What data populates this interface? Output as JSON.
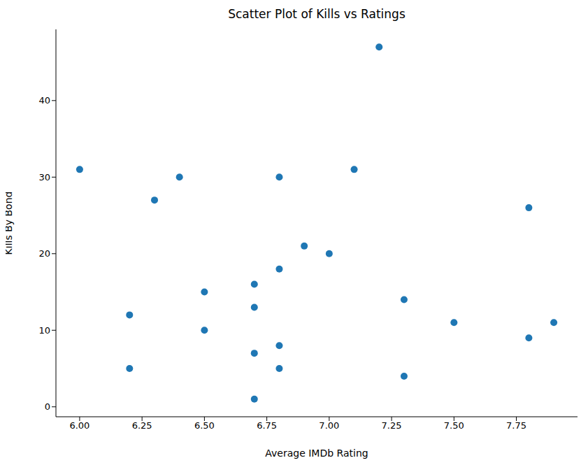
{
  "chart_data": {
    "type": "scatter",
    "title": "Scatter Plot of Kills vs Ratings",
    "x_label": "Average IMDb Rating",
    "y_label": "Kills By Bond",
    "x": [
      6.0,
      6.2,
      6.2,
      6.3,
      6.4,
      6.5,
      6.5,
      6.7,
      6.7,
      6.7,
      6.7,
      6.8,
      6.8,
      6.8,
      6.8,
      6.9,
      7.0,
      7.1,
      7.2,
      7.3,
      7.3,
      7.5,
      7.8,
      7.8,
      7.9
    ],
    "values": [
      31,
      12,
      5,
      27,
      30,
      15,
      10,
      16,
      13,
      7,
      1,
      30,
      18,
      8,
      5,
      21,
      20,
      31,
      47,
      14,
      4,
      11,
      26,
      9,
      11
    ],
    "color": "#1f77b4",
    "xlim": [
      5.905,
      7.995
    ],
    "ylim": [
      -1.3,
      49.3
    ],
    "xticks": [
      {
        "value": 6,
        "label": "6.00"
      },
      {
        "value": 6.25,
        "label": "6.25"
      },
      {
        "value": 6.5,
        "label": "6.50"
      },
      {
        "value": 6.75,
        "label": "6.75"
      },
      {
        "value": 7,
        "label": "7.00"
      },
      {
        "value": 7.25,
        "label": "7.25"
      },
      {
        "value": 7.5,
        "label": "7.50"
      },
      {
        "value": 7.75,
        "label": "7.75"
      }
    ],
    "yticks": [
      0,
      10,
      20,
      30,
      40
    ],
    "grid": false
  }
}
